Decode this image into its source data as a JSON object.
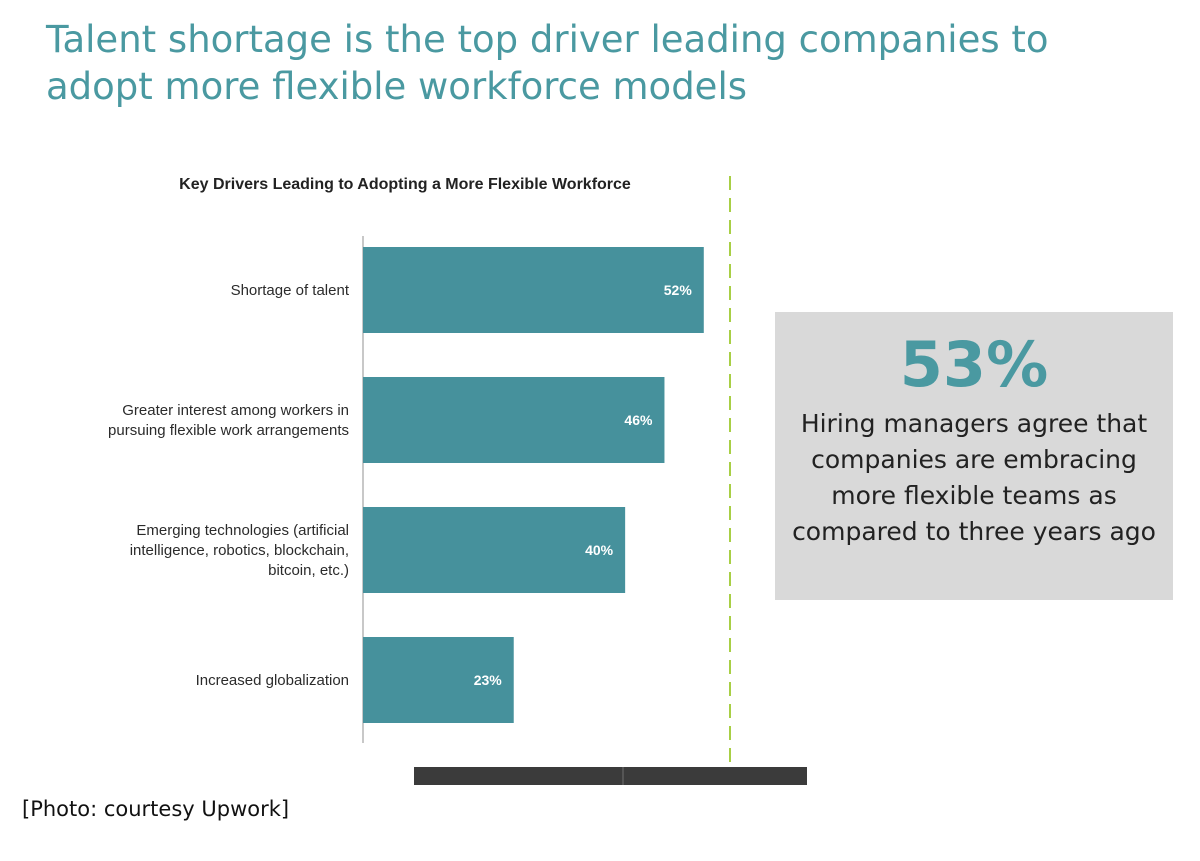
{
  "headline": "Talent shortage is the top driver leading companies to adopt more flexible workforce models",
  "chart_data": {
    "type": "bar",
    "orientation": "horizontal",
    "title": "Key Drivers Leading to Adopting a More Flexible Workforce",
    "categories": [
      [
        "Shortage of talent"
      ],
      [
        "Greater interest among workers in",
        "pursuing flexible work arrangements"
      ],
      [
        "Emerging technologies (artificial",
        "intelligence, robotics, blockchain,",
        "bitcoin, etc.)"
      ],
      [
        "Increased globalization"
      ]
    ],
    "values": [
      52,
      46,
      40,
      23
    ],
    "value_labels": [
      "52%",
      "46%",
      "40%",
      "23%"
    ],
    "unit": "%",
    "xlim": [
      0,
      56
    ],
    "reference_line": 56,
    "xlabel": "",
    "ylabel": "",
    "legend": "none",
    "colors": {
      "bar": "#46919c",
      "reference_line": "#a8cf45"
    }
  },
  "callout": {
    "number": "53%",
    "text": "Hiring managers agree that companies are embracing more flexible teams as compared to three years ago",
    "number_color": "#4a99a1",
    "background": "#d9d9d9"
  },
  "caption": "[Photo: courtesy Upwork]"
}
